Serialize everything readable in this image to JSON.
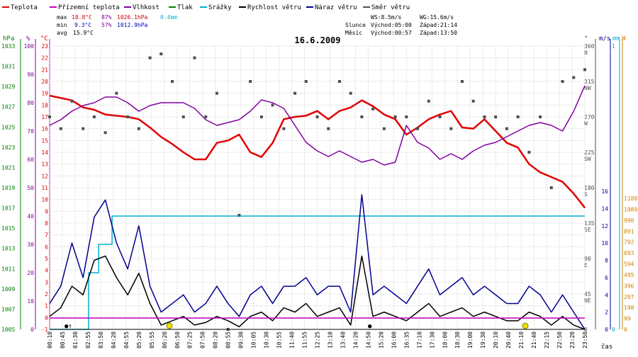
{
  "chart_data": {
    "type": "line",
    "title": "16.6.2009",
    "legend": [
      {
        "label": "Teplota",
        "color": "#e00000"
      },
      {
        "label": "Přízemní teplota",
        "color": "#c000c0"
      },
      {
        "label": "Vlhkost",
        "color": "#8000a0"
      },
      {
        "label": "Tlak",
        "color": "#008000"
      },
      {
        "label": "Srážky",
        "color": "#00b0d0"
      },
      {
        "label": "Rychlost větru",
        "color": "#000000"
      },
      {
        "label": "Náraz větru",
        "color": "#000090"
      },
      {
        "label": "Směr větru",
        "color": "#505050"
      }
    ],
    "stats": {
      "max_label": "max",
      "max_temp": "18.8°C",
      "max_hum": "87%",
      "max_press": "1026.1hPa",
      "max_rain": "0.4mm",
      "min_label": "min",
      "min_temp": "9.3°C",
      "min_hum": "57%",
      "min_press": "1012.9hPa",
      "avg_label": "avg",
      "avg_temp": "15.9°C"
    },
    "info": {
      "ws": "WS:8.5m/s",
      "wg": "WG:15.6m/s",
      "sun_label": "Slunce",
      "sun_rise": "Východ:05:00",
      "sun_set": "Západ:21:14",
      "moon_label": "Měsíc",
      "moon_rise": "Východ:00:57",
      "moon_set": "Západ:13:50"
    },
    "axes": {
      "hpa_unit": "hPa",
      "pct_unit": "%",
      "temp_unit": "°C",
      "dir_unit": "°",
      "ms_unit": "m/s",
      "mm_unit": "mm",
      "w_unit": "W",
      "time_unit": "čas",
      "pressure_ticks": [
        1033,
        1031,
        1029,
        1027,
        1025,
        1023,
        1021,
        1019,
        1017,
        1015,
        1013,
        1011,
        1009,
        1007,
        1005
      ],
      "humidity_ticks": [
        100,
        90,
        80,
        70,
        60,
        50,
        40,
        30,
        20,
        10,
        0
      ],
      "temp_ticks": [
        23,
        22,
        21,
        20,
        19,
        18,
        17,
        16,
        15,
        14,
        13,
        12,
        11,
        10,
        9,
        8,
        7,
        6,
        5,
        4,
        3,
        2,
        1,
        0,
        -1
      ],
      "direction_ticks": [
        {
          "deg": "360",
          "dir": "N"
        },
        {
          "deg": "315",
          "dir": "NW"
        },
        {
          "deg": "270",
          "dir": "W"
        },
        {
          "deg": "225",
          "dir": "SW"
        },
        {
          "deg": "180",
          "dir": "S"
        },
        {
          "deg": "135",
          "dir": "SE"
        },
        {
          "deg": "90",
          "dir": "E"
        },
        {
          "deg": "45",
          "dir": "NE"
        },
        {
          "deg": "0",
          "dir": ""
        }
      ],
      "wind_ticks": [
        16,
        14,
        12,
        10,
        8,
        6,
        4,
        2,
        0
      ],
      "rain_ticks": [
        "1",
        "0"
      ],
      "solar_ticks": [
        1188,
        1089,
        990,
        891,
        792,
        693,
        594,
        495,
        396,
        297,
        198,
        99,
        0
      ],
      "time_labels": [
        "00:10",
        "00:45",
        "01:30",
        "02:55",
        "03:50",
        "04:20",
        "04:55",
        "05:20",
        "05:55",
        "06:20",
        "06:50",
        "07:25",
        "07:50",
        "08:20",
        "08:55",
        "09:30",
        "10:05",
        "10:30",
        "10:55",
        "11:40",
        "11:55",
        "12:25",
        "13:10",
        "13:40",
        "14:20",
        "14:50",
        "15:20",
        "16:00",
        "16:35",
        "17:10",
        "17:30",
        "18:00",
        "18:30",
        "19:00",
        "19:30",
        "20:10",
        "20:40",
        "21:10",
        "21:40",
        "22:15",
        "22:50",
        "23:20",
        "23:50"
      ]
    },
    "series": [
      {
        "name": "Teplota",
        "unit": "°C",
        "color": "#e00000",
        "x": [
          0,
          0.5,
          1,
          1.5,
          2,
          2.5,
          3,
          3.5,
          4,
          4.5,
          5,
          5.5,
          6,
          6.5,
          7,
          7.5,
          8,
          8.5,
          9,
          9.5,
          10,
          10.5,
          11,
          11.5,
          12,
          12.5,
          13,
          13.5,
          14,
          14.5,
          15,
          15.5,
          16,
          16.5,
          17,
          17.5,
          18,
          18.5,
          19,
          19.5,
          20,
          20.5,
          21,
          21.5,
          22,
          22.5,
          23,
          23.5,
          24
        ],
        "values": [
          18.8,
          18.6,
          18.4,
          17.8,
          17.6,
          17.2,
          17.1,
          17.0,
          16.8,
          16.1,
          15.3,
          14.7,
          14.0,
          13.4,
          13.4,
          14.8,
          15.0,
          15.5,
          14.0,
          13.6,
          14.8,
          16.8,
          17.0,
          17.1,
          17.5,
          16.8,
          17.5,
          17.8,
          18.4,
          17.9,
          17.2,
          16.8,
          15.5,
          16.1,
          16.8,
          17.2,
          17.5,
          16.1,
          16.0,
          16.8,
          15.8,
          14.8,
          14.4,
          13.0,
          12.3,
          11.9,
          11.5,
          10.5,
          9.3
        ]
      },
      {
        "name": "Vlhkost",
        "unit": "%",
        "color": "#8000a0",
        "x": [
          0,
          0.5,
          1,
          1.5,
          2,
          2.5,
          3,
          3.5,
          4,
          4.5,
          5,
          5.5,
          6,
          6.5,
          7,
          7.5,
          8,
          8.5,
          9,
          9.5,
          10,
          10.5,
          11,
          11.5,
          12,
          12.5,
          13,
          13.5,
          14,
          14.5,
          15,
          15.5,
          16,
          16.5,
          17,
          17.5,
          18,
          18.5,
          19,
          19.5,
          20,
          20.5,
          21,
          21.5,
          22,
          22.5,
          23,
          23.5,
          24
        ],
        "values": [
          72,
          74,
          77,
          79,
          80,
          82,
          82,
          80,
          77,
          79,
          80,
          80,
          80,
          78,
          74,
          72,
          73,
          74,
          77,
          81,
          80,
          78,
          72,
          66,
          63,
          61,
          63,
          61,
          59,
          60,
          58,
          59,
          72,
          66,
          64,
          60,
          62,
          60,
          63,
          65,
          66,
          68,
          70,
          72,
          73,
          72,
          70,
          77,
          86
        ]
      },
      {
        "name": "Srážky",
        "unit": "mm",
        "color": "#00b0d0",
        "x": [
          0,
          1.1,
          1.75,
          2.2,
          2.6,
          2.8,
          24
        ],
        "values": [
          0,
          0,
          0.2,
          0.3,
          0.3,
          0.4,
          0.4
        ]
      },
      {
        "name": "Rychlost větru",
        "unit": "m/s",
        "color": "#000000",
        "x": [
          0,
          0.5,
          1,
          1.5,
          2,
          2.5,
          3,
          3.5,
          4,
          4.5,
          5,
          5.5,
          6,
          6.5,
          7,
          7.5,
          8,
          8.5,
          9,
          9.5,
          10,
          10.5,
          11,
          11.5,
          12,
          12.5,
          13,
          13.5,
          14,
          14.5,
          15,
          15.5,
          16,
          16.5,
          17,
          17.5,
          18,
          18.5,
          19,
          19.5,
          20,
          20.5,
          21,
          21.5,
          22,
          22.5,
          23,
          23.5,
          24
        ],
        "values": [
          1.5,
          2.5,
          5,
          4,
          8,
          8.5,
          6,
          4,
          6.5,
          3,
          0.5,
          1,
          1.5,
          0.5,
          0.8,
          1.5,
          1,
          0.3,
          1.5,
          2,
          1,
          2.5,
          2,
          3,
          1.5,
          2,
          2.5,
          0.5,
          8.5,
          1.5,
          2,
          1.5,
          1,
          2,
          3,
          1.5,
          2,
          2.5,
          1.5,
          2,
          1.5,
          1,
          1,
          2,
          1.5,
          0.5,
          1.5,
          0.5,
          0
        ]
      },
      {
        "name": "Náraz větru",
        "unit": "m/s",
        "color": "#000090",
        "x": [
          0,
          0.5,
          1,
          1.5,
          2,
          2.5,
          3,
          3.5,
          4,
          4.5,
          5,
          5.5,
          6,
          6.5,
          7,
          7.5,
          8,
          8.5,
          9,
          9.5,
          10,
          10.5,
          11,
          11.5,
          12,
          12.5,
          13,
          13.5,
          14,
          14.5,
          15,
          15.5,
          16,
          16.5,
          17,
          17.5,
          18,
          18.5,
          19,
          19.5,
          20,
          20.5,
          21,
          21.5,
          22,
          22.5,
          23,
          23.5,
          24
        ],
        "values": [
          3,
          5,
          10,
          6,
          13,
          15,
          10,
          7,
          12,
          5,
          2,
          3,
          4,
          2,
          3,
          5,
          3,
          1.5,
          4,
          5,
          3,
          5,
          5,
          6,
          4,
          5,
          5,
          2,
          15.6,
          4,
          5,
          4,
          3,
          5,
          7,
          4,
          5,
          6,
          4,
          5,
          4,
          3,
          3,
          5,
          4,
          2,
          4,
          2,
          0
        ]
      },
      {
        "name": "Směr větru",
        "unit": "°",
        "color": "#505050",
        "x": [
          0,
          0.5,
          1,
          1.5,
          2,
          2.5,
          3,
          3.5,
          4,
          4.5,
          5,
          5.5,
          6,
          6.5,
          7,
          7.5,
          8,
          8.5,
          9,
          9.5,
          10,
          10.5,
          11,
          11.5,
          12,
          12.5,
          13,
          13.5,
          14,
          14.5,
          15,
          15.5,
          16,
          16.5,
          17,
          17.5,
          18,
          18.5,
          19,
          19.5,
          20,
          20.5,
          21,
          21.5,
          22,
          22.5,
          23,
          23.5,
          24
        ],
        "values": [
          270,
          255,
          290,
          255,
          270,
          250,
          300,
          270,
          255,
          345,
          350,
          315,
          270,
          345,
          270,
          300,
          0,
          145,
          315,
          270,
          285,
          255,
          300,
          315,
          270,
          255,
          315,
          300,
          270,
          280,
          255,
          270,
          270,
          255,
          290,
          270,
          255,
          315,
          290,
          270,
          270,
          255,
          270,
          225,
          270,
          180,
          315,
          320,
          330
        ]
      }
    ],
    "xlim": [
      0,
      24
    ],
    "annotations": {
      "left_marker": "●↑",
      "mid_marker": "●"
    }
  }
}
